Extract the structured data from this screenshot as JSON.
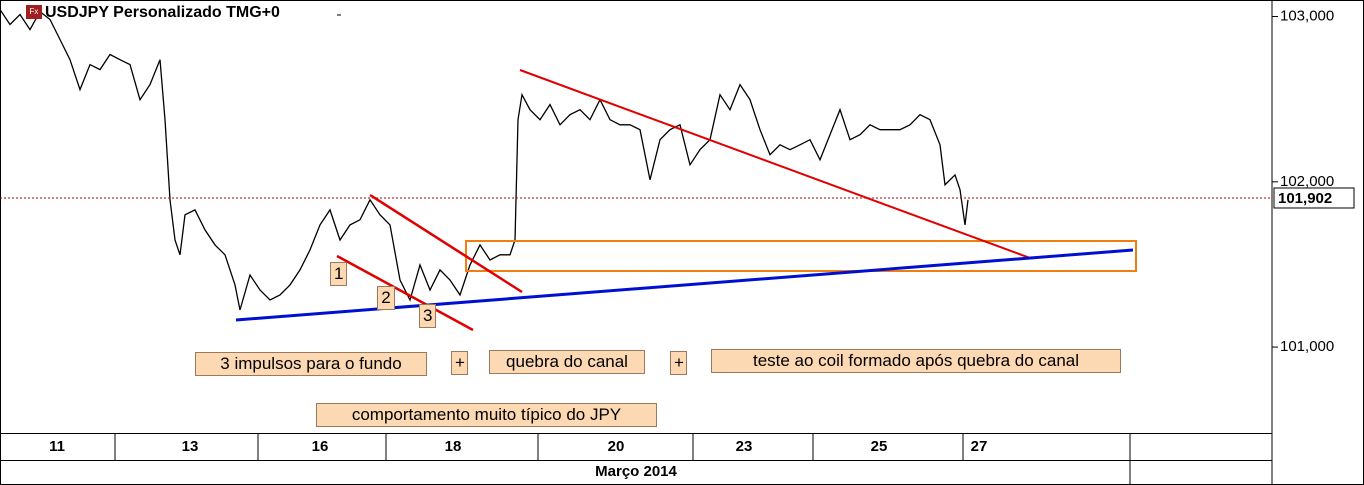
{
  "chart_data": {
    "type": "line",
    "title": "USDJPY Personalizado TMG+0",
    "icon_label": "Fx",
    "x_axis_label": "Março 2014",
    "xlim": [
      0,
      1272
    ],
    "xticks": [
      {
        "value": 57,
        "label": "11"
      },
      {
        "value": 190,
        "label": "13"
      },
      {
        "value": 320,
        "label": "16"
      },
      {
        "value": 453,
        "label": "18"
      },
      {
        "value": 616,
        "label": "20"
      },
      {
        "value": 744,
        "label": "23"
      },
      {
        "value": 879,
        "label": "25"
      },
      {
        "value": 979,
        "label": "27"
      }
    ],
    "ylim": [
      100.48,
      103.1
    ],
    "yticks": [
      {
        "value": 101,
        "label": "101,000"
      },
      {
        "value": 102,
        "label": "102,000"
      },
      {
        "value": 103,
        "label": "103,000"
      }
    ],
    "last_price": {
      "value": 101.902,
      "label": "101,902"
    },
    "series": [
      {
        "name": "USDJPY",
        "color": "#000000",
        "x": [
          0,
          10,
          20,
          30,
          40,
          50,
          60,
          70,
          80,
          90,
          100,
          110,
          120,
          130,
          140,
          150,
          160,
          165,
          170,
          175,
          180,
          185,
          195,
          205,
          215,
          225,
          235,
          240,
          250,
          260,
          270,
          280,
          290,
          300,
          310,
          320,
          330,
          340,
          350,
          360,
          370,
          380,
          390,
          400,
          410,
          420,
          430,
          440,
          450,
          460,
          470,
          480,
          490,
          500,
          510,
          515,
          518,
          522,
          530,
          540,
          550,
          560,
          570,
          580,
          590,
          600,
          610,
          620,
          630,
          640,
          650,
          660,
          670,
          680,
          690,
          700,
          710,
          720,
          730,
          740,
          750,
          760,
          770,
          780,
          790,
          800,
          810,
          820,
          830,
          840,
          850,
          860,
          870,
          880,
          890,
          900,
          910,
          920,
          930,
          940,
          945,
          955,
          960,
          965,
          968
        ],
        "values": [
          103.042,
          102.952,
          103.012,
          102.921,
          103.03,
          102.982,
          102.861,
          102.739,
          102.558,
          102.709,
          102.679,
          102.77,
          102.739,
          102.709,
          102.497,
          102.588,
          102.739,
          102.376,
          101.891,
          101.648,
          101.558,
          101.8,
          101.83,
          101.709,
          101.618,
          101.558,
          101.376,
          101.224,
          101.436,
          101.345,
          101.285,
          101.315,
          101.376,
          101.467,
          101.588,
          101.739,
          101.83,
          101.648,
          101.739,
          101.77,
          101.891,
          101.8,
          101.739,
          101.406,
          101.285,
          101.497,
          101.345,
          101.467,
          101.406,
          101.315,
          101.497,
          101.618,
          101.527,
          101.558,
          101.558,
          101.648,
          102.376,
          102.527,
          102.436,
          102.376,
          102.467,
          102.345,
          102.406,
          102.436,
          102.376,
          102.497,
          102.376,
          102.345,
          102.345,
          102.315,
          102.012,
          102.255,
          102.315,
          102.345,
          102.103,
          102.194,
          102.255,
          102.527,
          102.436,
          102.588,
          102.497,
          102.315,
          102.164,
          102.224,
          102.194,
          102.224,
          102.255,
          102.133,
          102.285,
          102.436,
          102.255,
          102.285,
          102.345,
          102.315,
          102.315,
          102.315,
          102.345,
          102.406,
          102.376,
          102.224,
          101.982,
          102.042,
          101.952,
          101.739,
          101.891
        ]
      }
    ],
    "annotations": [
      "1",
      "2",
      "3",
      "3 impulsos para o fundo",
      "+",
      "quebra do canal",
      "+",
      "teste ao coil formado após quebra do canal",
      "comportamento muito típico do JPY"
    ]
  }
}
